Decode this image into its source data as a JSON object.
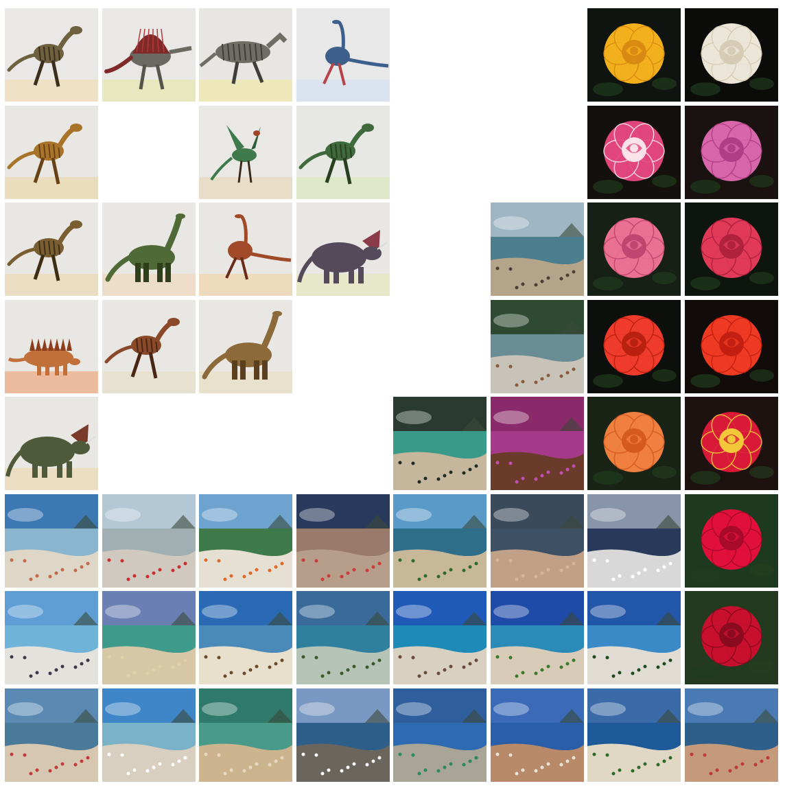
{
  "grid": {
    "columns": 8,
    "rows": 8,
    "background": "#ffffff",
    "tiles": [
      {
        "row": 0,
        "col": 0,
        "kind": "dino",
        "subject": "raptor",
        "bg": "#e9e8e6",
        "ground": "#eedfbf",
        "body": "#6f6040",
        "stripe": "#3b2f1e"
      },
      {
        "row": 0,
        "col": 1,
        "kind": "dino",
        "subject": "spinosaurus",
        "bg": "#e9e8e6",
        "ground": "#e8e7b8",
        "body": "#7f2a28",
        "stripe": "#b03a3a"
      },
      {
        "row": 0,
        "col": 2,
        "kind": "dino",
        "subject": "hadrosaur",
        "bg": "#e7e6e2",
        "ground": "#efe6b2",
        "body": "#6e6e66",
        "stripe": "#3f3f3a"
      },
      {
        "row": 0,
        "col": 3,
        "kind": "dino",
        "subject": "ornithomimus",
        "bg": "#e8e8e8",
        "ground": "#d6e0ee",
        "body": "#3d5f8c",
        "stripe": "#b4434a"
      },
      {
        "row": 0,
        "col": 6,
        "kind": "rose",
        "bg": "#0f1410",
        "petal": "#f2b11c",
        "inner": "#d98a12"
      },
      {
        "row": 0,
        "col": 7,
        "kind": "rose",
        "bg": "#0b0c0a",
        "petal": "#ece6d8",
        "inner": "#d6cbb4"
      },
      {
        "row": 1,
        "col": 0,
        "kind": "dino",
        "subject": "dilophosaurus",
        "bg": "#e8e7e3",
        "ground": "#eadbb6",
        "body": "#a8742a",
        "stripe": "#6a4218"
      },
      {
        "row": 1,
        "col": 2,
        "kind": "dino",
        "subject": "archaeopteryx",
        "bg": "#e9e8e4",
        "ground": "#e8dcc2",
        "body": "#3f7a4c",
        "stripe": "#a3432a"
      },
      {
        "row": 1,
        "col": 3,
        "kind": "dino",
        "subject": "carnivore",
        "bg": "#e7e7e3",
        "ground": "#dce8c4",
        "body": "#3f6a3c",
        "stripe": "#2a3f22"
      },
      {
        "row": 1,
        "col": 6,
        "kind": "rose",
        "bg": "#14100e",
        "petal": "#e0457c",
        "inner": "#fbe2e8"
      },
      {
        "row": 1,
        "col": 7,
        "kind": "rose",
        "bg": "#1a1210",
        "petal": "#d767aa",
        "inner": "#b03e86"
      },
      {
        "row": 2,
        "col": 0,
        "kind": "dino",
        "subject": "raptor",
        "bg": "#e8e7e3",
        "ground": "#eadbbc",
        "body": "#7a5e32",
        "stripe": "#3f2e16"
      },
      {
        "row": 2,
        "col": 1,
        "kind": "dino",
        "subject": "sauropod",
        "bg": "#e8e7e3",
        "ground": "#eedcc4",
        "body": "#4f6a36",
        "stripe": "#2f3f1c"
      },
      {
        "row": 2,
        "col": 2,
        "kind": "dino",
        "subject": "ornithomimus",
        "bg": "#e8e7e3",
        "ground": "#edd7b5",
        "body": "#a04a2a",
        "stripe": "#6a2b18"
      },
      {
        "row": 2,
        "col": 3,
        "kind": "dino",
        "subject": "ceratopsian",
        "bg": "#e8e7e3",
        "ground": "#e6e6c6",
        "body": "#544a5a",
        "stripe": "#8c3b4a"
      },
      {
        "row": 2,
        "col": 5,
        "kind": "beach",
        "sky": "#9fb6c4",
        "water": "#4b7f8e",
        "sand": "#b4a48a",
        "accent": "#4a4036"
      },
      {
        "row": 2,
        "col": 6,
        "kind": "rose",
        "bg": "#162016",
        "petal": "#ea7194",
        "inner": "#c04570"
      },
      {
        "row": 2,
        "col": 7,
        "kind": "rose",
        "bg": "#0e140e",
        "petal": "#e03a58",
        "inner": "#b0213c"
      },
      {
        "row": 3,
        "col": 0,
        "kind": "dino",
        "subject": "stegosaurus",
        "bg": "#e8e7e3",
        "ground": "#ecb392",
        "body": "#c2703a",
        "stripe": "#8a3e1c"
      },
      {
        "row": 3,
        "col": 1,
        "kind": "dino",
        "subject": "raptor",
        "bg": "#e8e7e3",
        "ground": "#e6dfcc",
        "body": "#8a4a2a",
        "stripe": "#4a2614"
      },
      {
        "row": 3,
        "col": 2,
        "kind": "dino",
        "subject": "sauropod",
        "bg": "#e8e7e3",
        "ground": "#e8dfc8",
        "body": "#8c6a3a",
        "stripe": "#5a4020"
      },
      {
        "row": 3,
        "col": 5,
        "kind": "beach",
        "sky": "#2f4a32",
        "water": "#6a8c94",
        "sand": "#c7c3b8",
        "accent": "#8a5a3a"
      },
      {
        "row": 3,
        "col": 6,
        "kind": "rose",
        "bg": "#0d0f0c",
        "petal": "#ee3b2c",
        "inner": "#b8200f"
      },
      {
        "row": 3,
        "col": 7,
        "kind": "rose",
        "bg": "#110c0a",
        "petal": "#ee3a22",
        "inner": "#c21f12"
      },
      {
        "row": 4,
        "col": 0,
        "kind": "dino",
        "subject": "ceratopsian",
        "bg": "#e8e7e3",
        "ground": "#eadabc",
        "body": "#4f5a3a",
        "stripe": "#7a3a2a"
      },
      {
        "row": 4,
        "col": 4,
        "kind": "beach",
        "sky": "#2a3a30",
        "water": "#3a9a8a",
        "sand": "#c6b79c",
        "accent": "#1f2a22"
      },
      {
        "row": 4,
        "col": 5,
        "kind": "beach",
        "sky": "#8a2a6a",
        "water": "#a63a8a",
        "sand": "#6a3a2a",
        "accent": "#c04fb0"
      },
      {
        "row": 4,
        "col": 6,
        "kind": "rose",
        "bg": "#1a2416",
        "petal": "#f08040",
        "inner": "#d45a20"
      },
      {
        "row": 4,
        "col": 7,
        "kind": "rose",
        "bg": "#1e1210",
        "petal": "#d81a38",
        "inner": "#f2c83a"
      },
      {
        "row": 5,
        "col": 0,
        "kind": "beach",
        "sky": "#3c79b2",
        "water": "#8ab5cf",
        "sand": "#ded6c6",
        "accent": "#c46a4a"
      },
      {
        "row": 5,
        "col": 1,
        "kind": "beach",
        "sky": "#b4c7d4",
        "water": "#a0b0b2",
        "sand": "#cfc9c0",
        "accent": "#cc2c2c"
      },
      {
        "row": 5,
        "col": 2,
        "kind": "beach",
        "sky": "#6fa3cf",
        "water": "#3f7a4a",
        "sand": "#e6e0d2",
        "accent": "#e06a2a"
      },
      {
        "row": 5,
        "col": 3,
        "kind": "beach",
        "sky": "#2a3a5c",
        "water": "#9a7a6a",
        "sand": "#b69e8a",
        "accent": "#cc3a3a"
      },
      {
        "row": 5,
        "col": 4,
        "kind": "beach",
        "sky": "#5a9ac8",
        "water": "#2e6e8a",
        "sand": "#c8b89a",
        "accent": "#2e6a2a"
      },
      {
        "row": 5,
        "col": 5,
        "kind": "beach",
        "sky": "#3a4a5a",
        "water": "#3e5064",
        "sand": "#c0a188",
        "accent": "#d8b49a"
      },
      {
        "row": 5,
        "col": 6,
        "kind": "beach",
        "sky": "#8894aa",
        "water": "#2a3a5a",
        "sand": "#d8d8d8",
        "accent": "#ffffff"
      },
      {
        "row": 5,
        "col": 7,
        "kind": "rose",
        "bg": "#1e3a1e",
        "petal": "#e0103a",
        "inner": "#a80a2a"
      },
      {
        "row": 6,
        "col": 0,
        "kind": "beach",
        "sky": "#5e9ed4",
        "water": "#6fb4d8",
        "sand": "#e4e2dc",
        "accent": "#3a3a4a"
      },
      {
        "row": 6,
        "col": 1,
        "kind": "beach",
        "sky": "#6a80b4",
        "water": "#3e9a8a",
        "sand": "#d6c8a6",
        "accent": "#e2d0a8"
      },
      {
        "row": 6,
        "col": 2,
        "kind": "beach",
        "sky": "#2a6ab4",
        "water": "#4a8ab8",
        "sand": "#e8e0cc",
        "accent": "#6a4a2a"
      },
      {
        "row": 6,
        "col": 3,
        "kind": "beach",
        "sky": "#3a6a9a",
        "water": "#2f7f9e",
        "sand": "#b6c4b8",
        "accent": "#3a5a2a"
      },
      {
        "row": 6,
        "col": 4,
        "kind": "beach",
        "sky": "#1f5ab8",
        "water": "#1e8ab8",
        "sand": "#d8d0c0",
        "accent": "#6a4a3a"
      },
      {
        "row": 6,
        "col": 5,
        "kind": "beach",
        "sky": "#1e4aa8",
        "water": "#2a8ab8",
        "sand": "#d8ccb8",
        "accent": "#3a7a2a"
      },
      {
        "row": 6,
        "col": 6,
        "kind": "beach",
        "sky": "#2256a8",
        "water": "#3a8ac8",
        "sand": "#e0dcd4",
        "accent": "#1e4a1e"
      },
      {
        "row": 6,
        "col": 7,
        "kind": "rose",
        "bg": "#243a1e",
        "petal": "#c8102e",
        "inner": "#8a0a1e"
      },
      {
        "row": 7,
        "col": 0,
        "kind": "beach",
        "sky": "#5a8ab4",
        "water": "#4a7a9a",
        "sand": "#d6c8b0",
        "accent": "#c43a3a"
      },
      {
        "row": 7,
        "col": 1,
        "kind": "beach",
        "sky": "#3e86c8",
        "water": "#7ab2c8",
        "sand": "#d8cfc0",
        "accent": "#ffffff"
      },
      {
        "row": 7,
        "col": 2,
        "kind": "beach",
        "sky": "#2f7a6a",
        "water": "#4a9a8a",
        "sand": "#cbb48e",
        "accent": "#e8d8c0"
      },
      {
        "row": 7,
        "col": 3,
        "kind": "beach",
        "sky": "#7a98c4",
        "water": "#2e5e8a",
        "sand": "#6a665e",
        "accent": "#ffffff"
      },
      {
        "row": 7,
        "col": 4,
        "kind": "beach",
        "sky": "#2e5e9e",
        "water": "#2e6ab2",
        "sand": "#a8a496",
        "accent": "#2a8a5a"
      },
      {
        "row": 7,
        "col": 5,
        "kind": "beach",
        "sky": "#3a6ab8",
        "water": "#2a5ea8",
        "sand": "#b88a6a",
        "accent": "#e8e4dc"
      },
      {
        "row": 7,
        "col": 6,
        "kind": "beach",
        "sky": "#3a6aa8",
        "water": "#1e5a9a",
        "sand": "#e0d8c4",
        "accent": "#2a6a2a"
      },
      {
        "row": 7,
        "col": 7,
        "kind": "beach",
        "sky": "#4a7ab4",
        "water": "#2e5e8a",
        "sand": "#c49a7a",
        "accent": "#c03a3a"
      }
    ]
  }
}
